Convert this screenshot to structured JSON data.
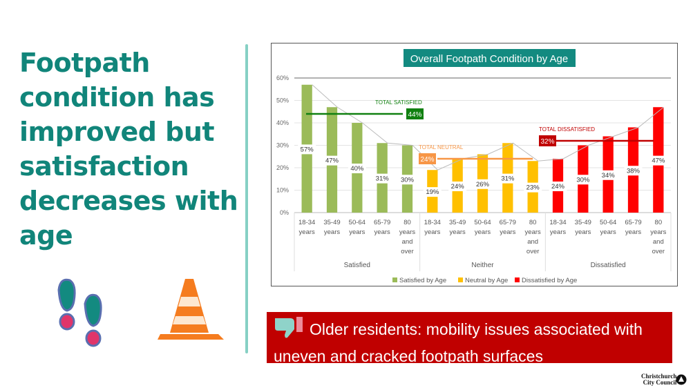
{
  "headline": "Footpath condition has improved but satisfaction decreases with age",
  "banner": {
    "text": "Older residents: mobility issues associated with uneven and cracked footpath surfaces",
    "icon": "thumbs-down-icon"
  },
  "logo": {
    "line1": "Christchurch",
    "line2": "City Council"
  },
  "decor": {
    "icons": [
      "footprints-icon",
      "traffic-cone-icon"
    ]
  },
  "colors": {
    "headline": "#11857a",
    "satisfied": "#9bbb59",
    "neutral": "#ffc000",
    "dissatisfied": "#ff0000",
    "banner": "#c00000",
    "title_bg": "#138a80"
  },
  "chart_data": {
    "type": "bar",
    "title": "Overall Footpath Condition by Age",
    "ylim": [
      0,
      60
    ],
    "yticks": [
      "0%",
      "10%",
      "20%",
      "30%",
      "40%",
      "50%",
      "60%"
    ],
    "grid": true,
    "legend_position": "bottom",
    "categories": [
      "18-34 years",
      "35-49 years",
      "50-64 years",
      "65-79 years",
      "80 years and over"
    ],
    "groups": [
      "Satisfied",
      "Neither",
      "Dissatisfied"
    ],
    "series": [
      {
        "name": "Satisfied by Age",
        "values": [
          57,
          47,
          40,
          31,
          30
        ],
        "labels": [
          "57%",
          "47%",
          "40%",
          "31%",
          "30%"
        ],
        "color": "#9bbb59"
      },
      {
        "name": "Neutral by Age",
        "values": [
          19,
          24,
          26,
          31,
          23
        ],
        "labels": [
          "19%",
          "24%",
          "26%",
          "31%",
          "23%"
        ],
        "color": "#ffc000"
      },
      {
        "name": "Dissatisfied by Age",
        "values": [
          24,
          30,
          34,
          38,
          47
        ],
        "labels": [
          "24%",
          "30%",
          "34%",
          "38%",
          "47%"
        ],
        "color": "#ff0000"
      }
    ],
    "totals": [
      {
        "label": "TOTAL SATISFIED",
        "value": 44,
        "value_label": "44%",
        "color": "#108010"
      },
      {
        "label": "TOTAL NEUTRAL",
        "value": 24,
        "value_label": "24%",
        "color": "#f79646"
      },
      {
        "label": "TOTAL DISSATISFIED",
        "value": 32,
        "value_label": "32%",
        "color": "#c00000"
      }
    ]
  }
}
